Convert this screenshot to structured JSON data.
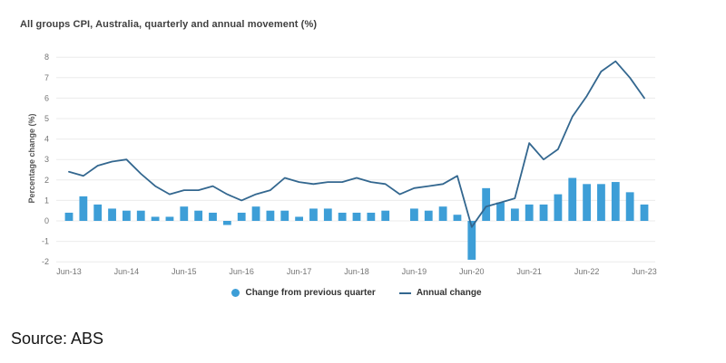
{
  "header": {
    "title": "All groups CPI, Australia, quarterly and annual movement (%)"
  },
  "source": {
    "text": "Source: ABS"
  },
  "legend": {
    "items": [
      {
        "label": "Change from previous quarter",
        "marker": "circle"
      },
      {
        "label": "Annual change",
        "marker": "line"
      }
    ]
  },
  "colors": {
    "bar": "#3d9ed7",
    "line": "#33678f",
    "grid": "#ebebeb",
    "tick_text": "#757575",
    "title_text": "#3f3f3f"
  },
  "chart_data": {
    "type": "bar",
    "subtype": "combo-bar-line",
    "title": "All groups CPI, Australia, quarterly and annual movement (%)",
    "xlabel": "",
    "ylabel": "Percentage change (%)",
    "ylim": [
      -2,
      8
    ],
    "ytick_step": 1,
    "grid": "horizontal",
    "legend_position": "bottom",
    "categories": [
      "Jun-13",
      "Sep-13",
      "Dec-13",
      "Mar-14",
      "Jun-14",
      "Sep-14",
      "Dec-14",
      "Mar-15",
      "Jun-15",
      "Sep-15",
      "Dec-15",
      "Mar-16",
      "Jun-16",
      "Sep-16",
      "Dec-16",
      "Mar-17",
      "Jun-17",
      "Sep-17",
      "Dec-17",
      "Mar-18",
      "Jun-18",
      "Sep-18",
      "Dec-18",
      "Mar-19",
      "Jun-19",
      "Sep-19",
      "Dec-19",
      "Mar-20",
      "Jun-20",
      "Sep-20",
      "Dec-20",
      "Mar-21",
      "Jun-21",
      "Sep-21",
      "Dec-21",
      "Mar-22",
      "Jun-22",
      "Sep-22",
      "Dec-22",
      "Mar-23",
      "Jun-23"
    ],
    "xtick_labels": [
      "Jun-13",
      "Jun-14",
      "Jun-15",
      "Jun-16",
      "Jun-17",
      "Jun-18",
      "Jun-19",
      "Jun-20",
      "Jun-21",
      "Jun-22",
      "Jun-23"
    ],
    "series": [
      {
        "name": "Change from previous quarter",
        "type": "bar",
        "color": "#3d9ed7",
        "values": [
          0.4,
          1.2,
          0.8,
          0.6,
          0.5,
          0.5,
          0.2,
          0.2,
          0.7,
          0.5,
          0.4,
          -0.2,
          0.4,
          0.7,
          0.5,
          0.5,
          0.2,
          0.6,
          0.6,
          0.4,
          0.4,
          0.4,
          0.5,
          0.0,
          0.6,
          0.5,
          0.7,
          0.3,
          -1.9,
          1.6,
          0.9,
          0.6,
          0.8,
          0.8,
          1.3,
          2.1,
          1.8,
          1.8,
          1.9,
          1.4,
          0.8
        ]
      },
      {
        "name": "Annual change",
        "type": "line",
        "color": "#33678f",
        "values": [
          2.4,
          2.2,
          2.7,
          2.9,
          3.0,
          2.3,
          1.7,
          1.3,
          1.5,
          1.5,
          1.7,
          1.3,
          1.0,
          1.3,
          1.5,
          2.1,
          1.9,
          1.8,
          1.9,
          1.9,
          2.1,
          1.9,
          1.8,
          1.3,
          1.6,
          1.7,
          1.8,
          2.2,
          -0.3,
          0.7,
          0.9,
          1.1,
          3.8,
          3.0,
          3.5,
          5.1,
          6.1,
          7.3,
          7.8,
          7.0,
          6.0
        ]
      }
    ]
  }
}
